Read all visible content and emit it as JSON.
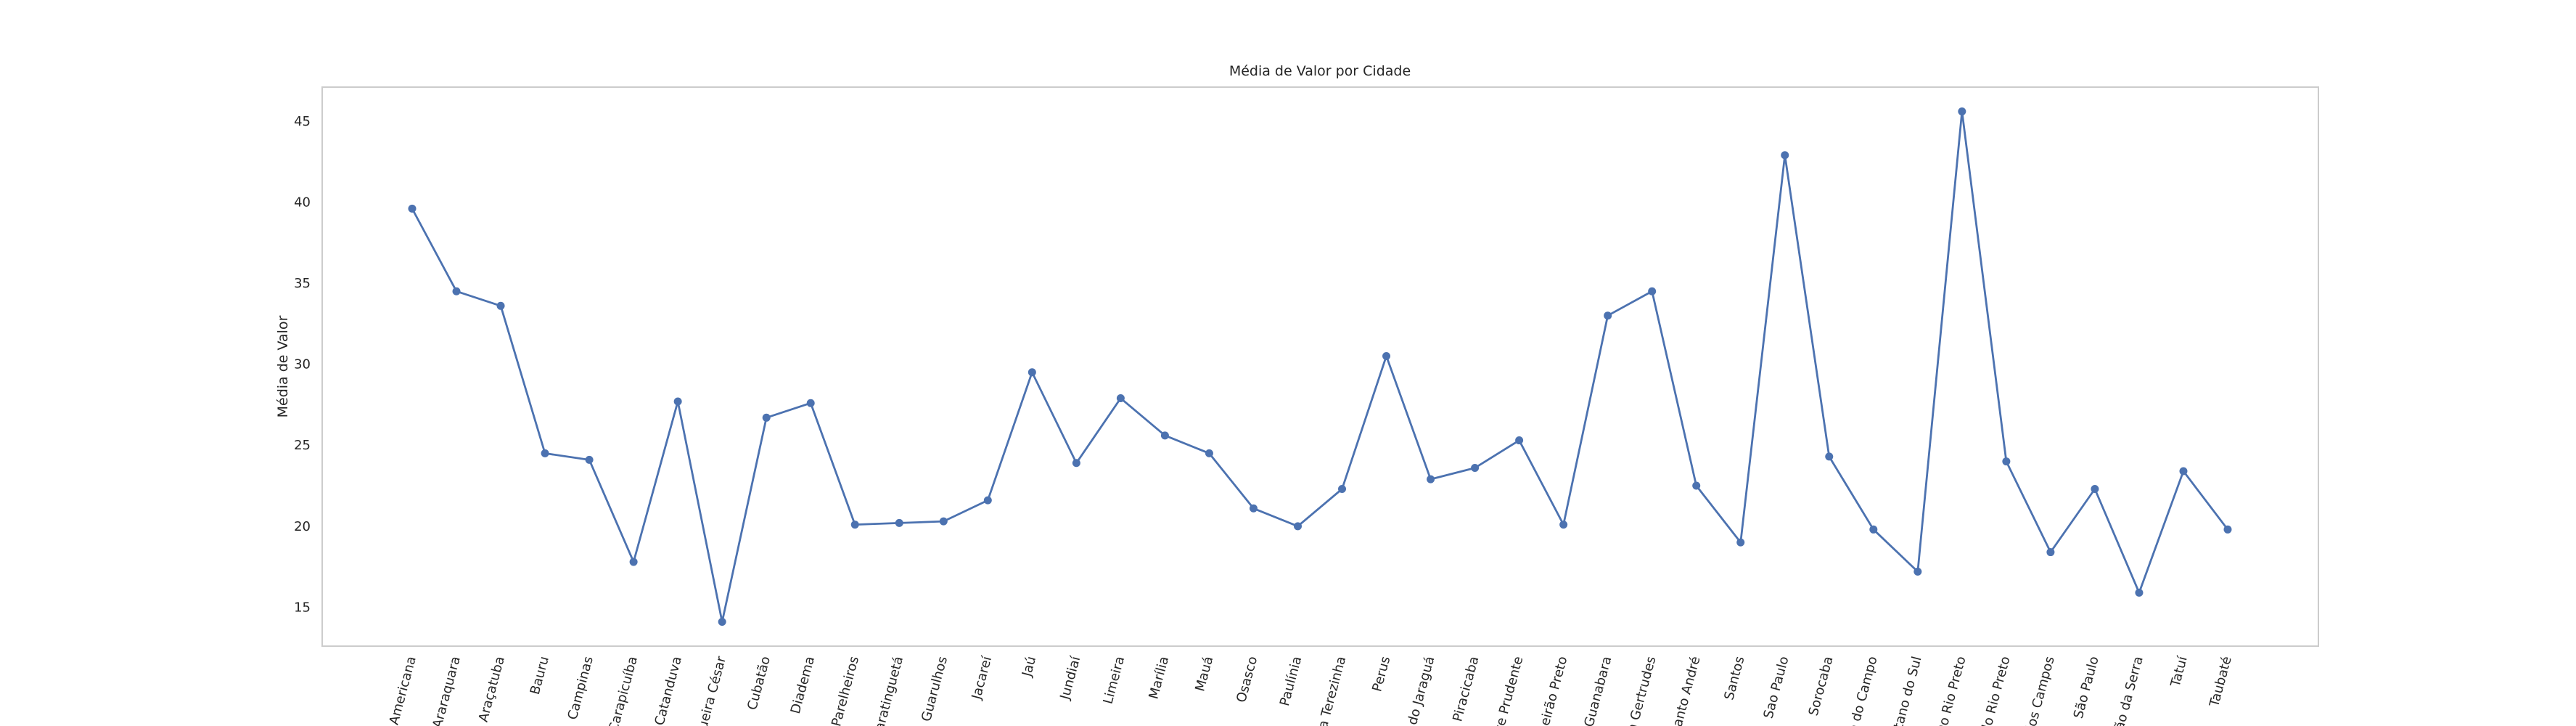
{
  "chart_data": {
    "type": "line",
    "title": "Média de Valor por Cidade",
    "y_label": "Média de Valor",
    "categories": [
      "Americana",
      "Araraquara",
      "Araçatuba",
      "Bauru",
      "Campinas",
      "Carapicuíba",
      "Catanduva",
      "queira César",
      "Cubatão",
      "Diadema",
      "-Parelheiros",
      "uaratinguetá",
      "Guarulhos",
      "Jacareí",
      "Jaú",
      "Jundiaí",
      "Limeira",
      "Marília",
      "Mauá",
      "Osasco",
      "Paulínia",
      "sta Terezinha",
      "Perus",
      "o do Jaraguá",
      "Piracicaba",
      "ente Prudente",
      "ibeirão Preto",
      "d Guanabara",
      "ta Gertrudes",
      "Santo André",
      "Santos",
      "Sao Paulo",
      "Sorocaba",
      "o do Campo",
      "etano do Sul",
      "Do Rio Preto",
      "do Rio Preto",
      "dos Campos",
      "São Paulo",
      "oão da Serra",
      "Tatuí",
      "Taubaté"
    ],
    "values": [
      39.6,
      34.5,
      33.6,
      24.5,
      24.1,
      17.8,
      27.7,
      14.1,
      26.7,
      27.6,
      20.1,
      20.2,
      20.3,
      21.6,
      29.5,
      23.9,
      27.9,
      25.6,
      24.5,
      21.1,
      20.0,
      22.3,
      30.5,
      22.9,
      23.6,
      25.3,
      20.1,
      33.0,
      34.5,
      22.5,
      19.0,
      42.9,
      24.3,
      19.8,
      17.2,
      45.6,
      24.0,
      18.4,
      22.3,
      15.9,
      23.4,
      19.8
    ],
    "color": "#4c72b0",
    "ylim": [
      12.6,
      47.1
    ],
    "yticks": [
      15,
      20,
      25,
      30,
      35,
      40,
      45
    ],
    "grid": false,
    "markers": true
  }
}
